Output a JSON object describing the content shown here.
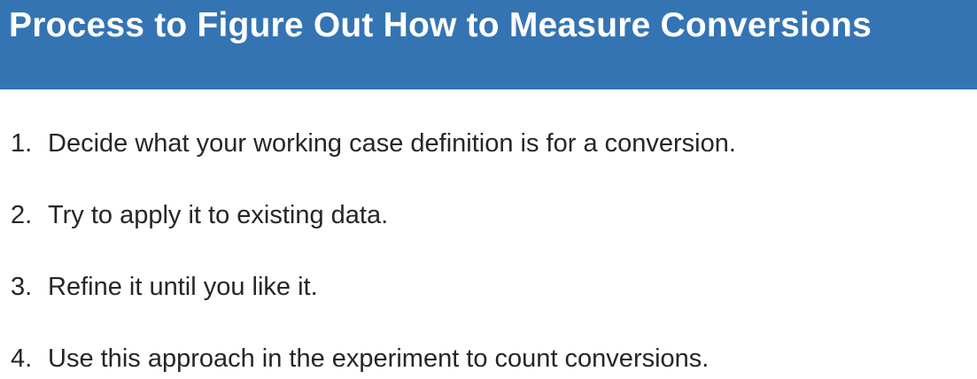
{
  "header": {
    "title": "Process to Figure Out How to Measure Conversions"
  },
  "steps": [
    {
      "number": "1.",
      "text": "Decide what your working case definition is for a conversion."
    },
    {
      "number": "2.",
      "text": "Try to apply it to existing data."
    },
    {
      "number": "3.",
      "text": "Refine it until you like it."
    },
    {
      "number": "4.",
      "text": "Use this approach in the experiment to count conversions."
    }
  ],
  "colors": {
    "header_background": "#3474b3",
    "header_text": "#ffffff",
    "body_text": "#262626",
    "page_background": "#ffffff"
  }
}
